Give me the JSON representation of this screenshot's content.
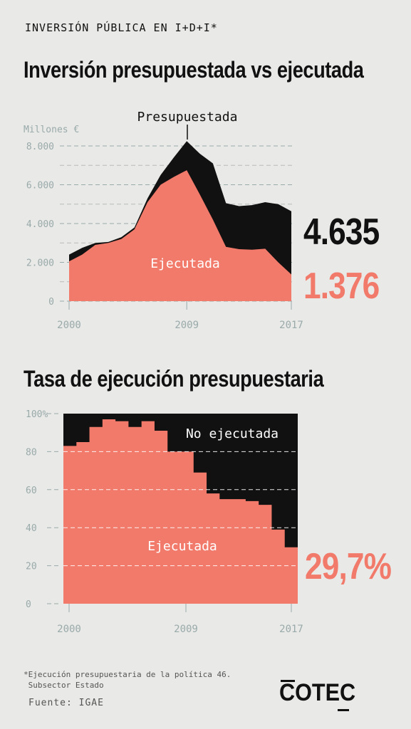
{
  "header": {
    "kicker": "INVERSIÓN PÚBLICA EN I+D+I*",
    "title_1": "Inversión presupuestada vs ejecutada",
    "title_2": "Tasa de ejecución presupuestaria"
  },
  "colors": {
    "executed": "#f27a6b",
    "budget": "#111111",
    "background": "#e9e9e7"
  },
  "highlights": {
    "budget_2017": "4.635",
    "executed_2017": "1.376",
    "rate_2017": "29,7%"
  },
  "chart_data": [
    {
      "type": "area",
      "ylabel": "Millones €",
      "x": [
        2000,
        2001,
        2002,
        2003,
        2004,
        2005,
        2006,
        2007,
        2008,
        2009,
        2010,
        2011,
        2012,
        2013,
        2014,
        2015,
        2016,
        2017
      ],
      "xticks": [
        "2000",
        "2009",
        "2017"
      ],
      "yticks": [
        "8.000",
        "6.000",
        "4.000",
        "2.000",
        "0"
      ],
      "ylim": [
        0,
        8000
      ],
      "series": [
        {
          "name": "Presupuestada",
          "values": [
            2400,
            2750,
            3000,
            3050,
            3300,
            3800,
            5300,
            6500,
            7400,
            8250,
            7600,
            7100,
            5050,
            4900,
            4950,
            5100,
            5000,
            4635
          ]
        },
        {
          "name": "Ejecutada",
          "values": [
            2050,
            2400,
            2900,
            3000,
            3200,
            3700,
            5100,
            6000,
            6400,
            6750,
            5500,
            4200,
            2800,
            2680,
            2650,
            2700,
            2000,
            1376
          ]
        }
      ]
    },
    {
      "type": "area",
      "x": [
        2000,
        2001,
        2002,
        2003,
        2004,
        2005,
        2006,
        2007,
        2008,
        2009,
        2010,
        2011,
        2012,
        2013,
        2014,
        2015,
        2016,
        2017
      ],
      "xticks": [
        "2000",
        "2009",
        "2017"
      ],
      "yticks": [
        "100%",
        "80",
        "60",
        "40",
        "20",
        "0"
      ],
      "ylim": [
        0,
        100
      ],
      "series": [
        {
          "name": "Ejecutada",
          "values": [
            83,
            85,
            93,
            97,
            96,
            93,
            96,
            91,
            80,
            80,
            69,
            58,
            55,
            55,
            54,
            52,
            39,
            29.7
          ]
        },
        {
          "name": "No ejecutada",
          "values": [
            17,
            15,
            7,
            3,
            4,
            7,
            4,
            9,
            20,
            20,
            31,
            42,
            45,
            45,
            46,
            48,
            61,
            70.3
          ]
        }
      ]
    }
  ],
  "footer": {
    "note": "*Ejecución presupuestaria de la política 46.\n Subsector Estado",
    "source": "Fuente: IGAE",
    "logo": "COTEC"
  }
}
